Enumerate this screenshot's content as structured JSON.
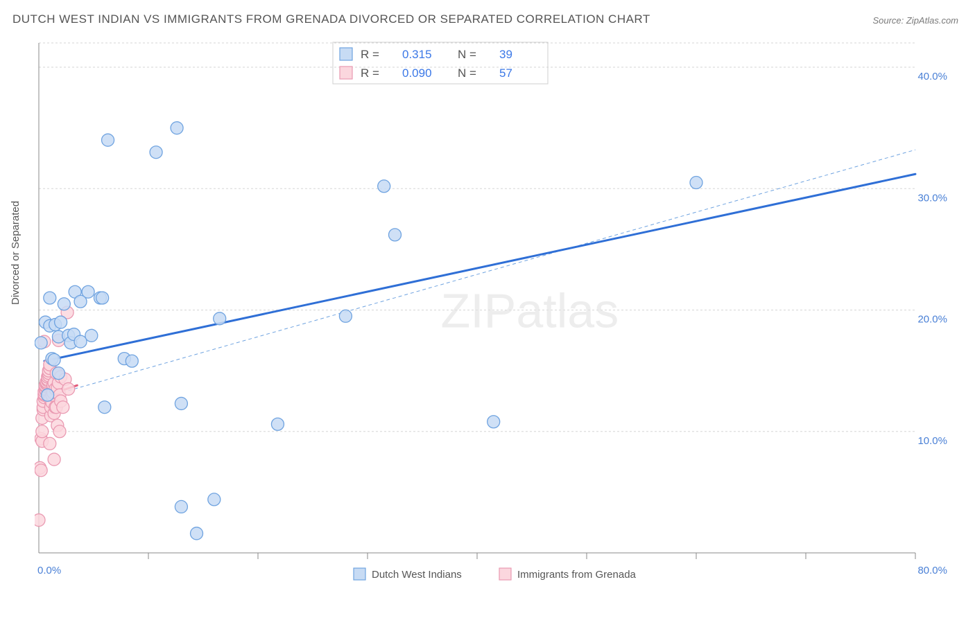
{
  "title": "DUTCH WEST INDIAN VS IMMIGRANTS FROM GRENADA DIVORCED OR SEPARATED CORRELATION CHART",
  "source": "Source: ZipAtlas.com",
  "y_axis_label": "Divorced or Separated",
  "watermark": "ZIPatlas",
  "chart": {
    "type": "scatter",
    "background_color": "#ffffff",
    "grid_color": "#d5d5d5",
    "axis_color": "#888888",
    "xlim": [
      0,
      80
    ],
    "ylim": [
      0,
      42
    ],
    "y_gridlines": [
      10,
      20,
      30,
      40
    ],
    "y_tick_labels": [
      "10.0%",
      "20.0%",
      "30.0%",
      "40.0%"
    ],
    "x_ticks": [
      10,
      20,
      30,
      40,
      50,
      60,
      70,
      80
    ],
    "x_axis_start_label": "0.0%",
    "x_axis_end_label": "80.0%",
    "marker_radius": 9,
    "marker_stroke_width": 1.3,
    "regression_line_width": 3,
    "ci_line_width": 1,
    "ci_dash": "5 4",
    "series": [
      {
        "name": "Dutch West Indians",
        "marker_fill": "#c7dbf4",
        "marker_stroke": "#6fa3e0",
        "line_color": "#2f6fd6",
        "r_value": "0.315",
        "n_value": "39",
        "points": [
          [
            0.2,
            17.3
          ],
          [
            0.6,
            19.0
          ],
          [
            0.8,
            13.0
          ],
          [
            1.0,
            21.0
          ],
          [
            1.0,
            18.7
          ],
          [
            1.2,
            16.0
          ],
          [
            1.4,
            15.9
          ],
          [
            1.5,
            18.8
          ],
          [
            1.8,
            14.8
          ],
          [
            1.8,
            17.8
          ],
          [
            2.0,
            19.0
          ],
          [
            2.3,
            20.5
          ],
          [
            2.7,
            17.9
          ],
          [
            2.9,
            17.3
          ],
          [
            3.2,
            18.0
          ],
          [
            3.3,
            21.5
          ],
          [
            3.8,
            17.4
          ],
          [
            3.8,
            20.7
          ],
          [
            4.5,
            21.5
          ],
          [
            4.8,
            17.9
          ],
          [
            5.6,
            21.0
          ],
          [
            5.8,
            21.0
          ],
          [
            6.0,
            12.0
          ],
          [
            6.3,
            34.0
          ],
          [
            7.8,
            16.0
          ],
          [
            8.5,
            15.8
          ],
          [
            10.7,
            33.0
          ],
          [
            12.6,
            35.0
          ],
          [
            13.0,
            12.3
          ],
          [
            13.0,
            3.8
          ],
          [
            14.4,
            1.6
          ],
          [
            16.0,
            4.4
          ],
          [
            16.5,
            19.3
          ],
          [
            21.8,
            10.6
          ],
          [
            28.0,
            19.5
          ],
          [
            31.5,
            30.2
          ],
          [
            32.5,
            26.2
          ],
          [
            41.5,
            10.8
          ],
          [
            60.0,
            30.5
          ]
        ],
        "regression": {
          "x1": 0.5,
          "y1": 15.8,
          "x2": 80,
          "y2": 31.2
        },
        "ci_line": {
          "x1": 0.5,
          "y1": 12.8,
          "x2": 80,
          "y2": 33.2
        }
      },
      {
        "name": "Immigrants from Grenada",
        "marker_fill": "#fbd7de",
        "marker_stroke": "#ea9ab2",
        "line_color": "#e15b7a",
        "r_value": "0.090",
        "n_value": "57",
        "points": [
          [
            0.0,
            2.7
          ],
          [
            0.1,
            7.0
          ],
          [
            0.2,
            6.8
          ],
          [
            0.2,
            9.4
          ],
          [
            0.3,
            9.2
          ],
          [
            0.3,
            10.0
          ],
          [
            0.3,
            11.1
          ],
          [
            0.4,
            11.8
          ],
          [
            0.4,
            12.0
          ],
          [
            0.4,
            12.5
          ],
          [
            0.5,
            12.8
          ],
          [
            0.5,
            13.0
          ],
          [
            0.5,
            13.1
          ],
          [
            0.5,
            13.3
          ],
          [
            0.6,
            13.4
          ],
          [
            0.6,
            13.5
          ],
          [
            0.6,
            13.7
          ],
          [
            0.6,
            13.8
          ],
          [
            0.7,
            13.9
          ],
          [
            0.7,
            14.0
          ],
          [
            0.7,
            14.1
          ],
          [
            0.8,
            14.2
          ],
          [
            0.8,
            14.3
          ],
          [
            0.8,
            14.5
          ],
          [
            0.9,
            14.6
          ],
          [
            0.9,
            14.8
          ],
          [
            0.9,
            15.0
          ],
          [
            1.0,
            15.2
          ],
          [
            1.0,
            15.5
          ],
          [
            1.0,
            12.7
          ],
          [
            1.1,
            11.3
          ],
          [
            1.1,
            12.0
          ],
          [
            1.2,
            12.4
          ],
          [
            1.2,
            13.0
          ],
          [
            1.3,
            13.2
          ],
          [
            1.3,
            13.8
          ],
          [
            1.4,
            14.0
          ],
          [
            1.4,
            11.5
          ],
          [
            1.5,
            12.0
          ],
          [
            1.5,
            13.5
          ],
          [
            1.6,
            14.8
          ],
          [
            1.6,
            12.0
          ],
          [
            1.7,
            10.5
          ],
          [
            1.7,
            13.6
          ],
          [
            1.8,
            17.5
          ],
          [
            1.8,
            14.0
          ],
          [
            1.9,
            10.0
          ],
          [
            1.9,
            13.0
          ],
          [
            2.0,
            12.5
          ],
          [
            2.0,
            14.5
          ],
          [
            2.2,
            12.0
          ],
          [
            2.4,
            14.3
          ],
          [
            2.7,
            13.5
          ],
          [
            0.5,
            17.4
          ],
          [
            1.0,
            9.0
          ],
          [
            1.4,
            7.7
          ],
          [
            2.6,
            19.8
          ]
        ],
        "regression": {
          "x1": 0.2,
          "y1": 12.8,
          "x2": 3.5,
          "y2": 13.8
        }
      }
    ],
    "stats_legend": {
      "r_label": "R  =",
      "n_label": "N  ="
    },
    "bottom_legend": {
      "swatch_size": 17
    }
  }
}
